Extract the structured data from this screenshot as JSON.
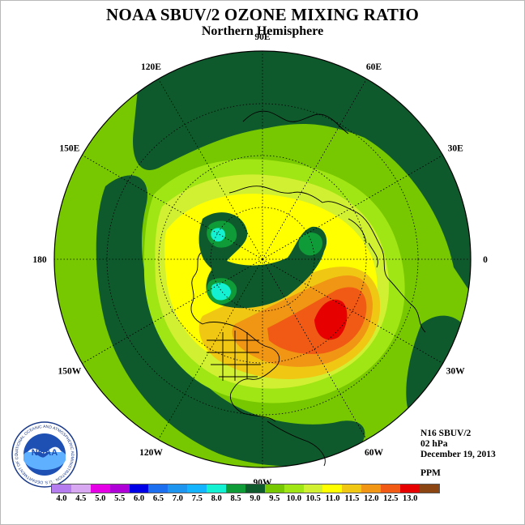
{
  "title": "NOAA SBUV/2 OZONE MIXING RATIO",
  "subtitle": "Northern Hemisphere",
  "longitude_labels": [
    {
      "label": "90E",
      "lon": 90
    },
    {
      "label": "60E",
      "lon": 60
    },
    {
      "label": "30E",
      "lon": 30
    },
    {
      "label": "0",
      "lon": 0
    },
    {
      "label": "30W",
      "lon": -30
    },
    {
      "label": "60W",
      "lon": -60
    },
    {
      "label": "90W",
      "lon": -90
    },
    {
      "label": "120W",
      "lon": -120
    },
    {
      "label": "150W",
      "lon": -150
    },
    {
      "label": "180",
      "lon": 180
    },
    {
      "label": "150E",
      "lon": 150
    },
    {
      "label": "120E",
      "lon": 120
    }
  ],
  "info": {
    "satellite": "N16 SBUV/2",
    "level": "02 hPa",
    "date": "December 19, 2013",
    "unit": "PPM"
  },
  "colorbar": {
    "labels": [
      "4.0",
      "4.5",
      "5.0",
      "5.5",
      "6.0",
      "6.5",
      "7.0",
      "7.5",
      "8.0",
      "8.5",
      "9.0",
      "9.5",
      "10.0",
      "10.5",
      "11.0",
      "11.5",
      "12.0",
      "12.5",
      "13.0"
    ],
    "colors": [
      "#b57cef",
      "#d9a8f2",
      "#e600e6",
      "#b000d8",
      "#0000e6",
      "#1e6ef0",
      "#1e96f0",
      "#14b4ff",
      "#14f0d2",
      "#0f9b37",
      "#0f5a2d",
      "#78c800",
      "#a0e614",
      "#d2f032",
      "#ffff00",
      "#f0c814",
      "#f09614",
      "#f05a14",
      "#e60000",
      "#8b4513"
    ]
  },
  "logo_text": {
    "center": "NOAA",
    "ring": "NATIONAL OCEANIC AND ATMOSPHERIC ADMINISTRATION · U.S. DEPARTMENT OF COMMERCE"
  }
}
